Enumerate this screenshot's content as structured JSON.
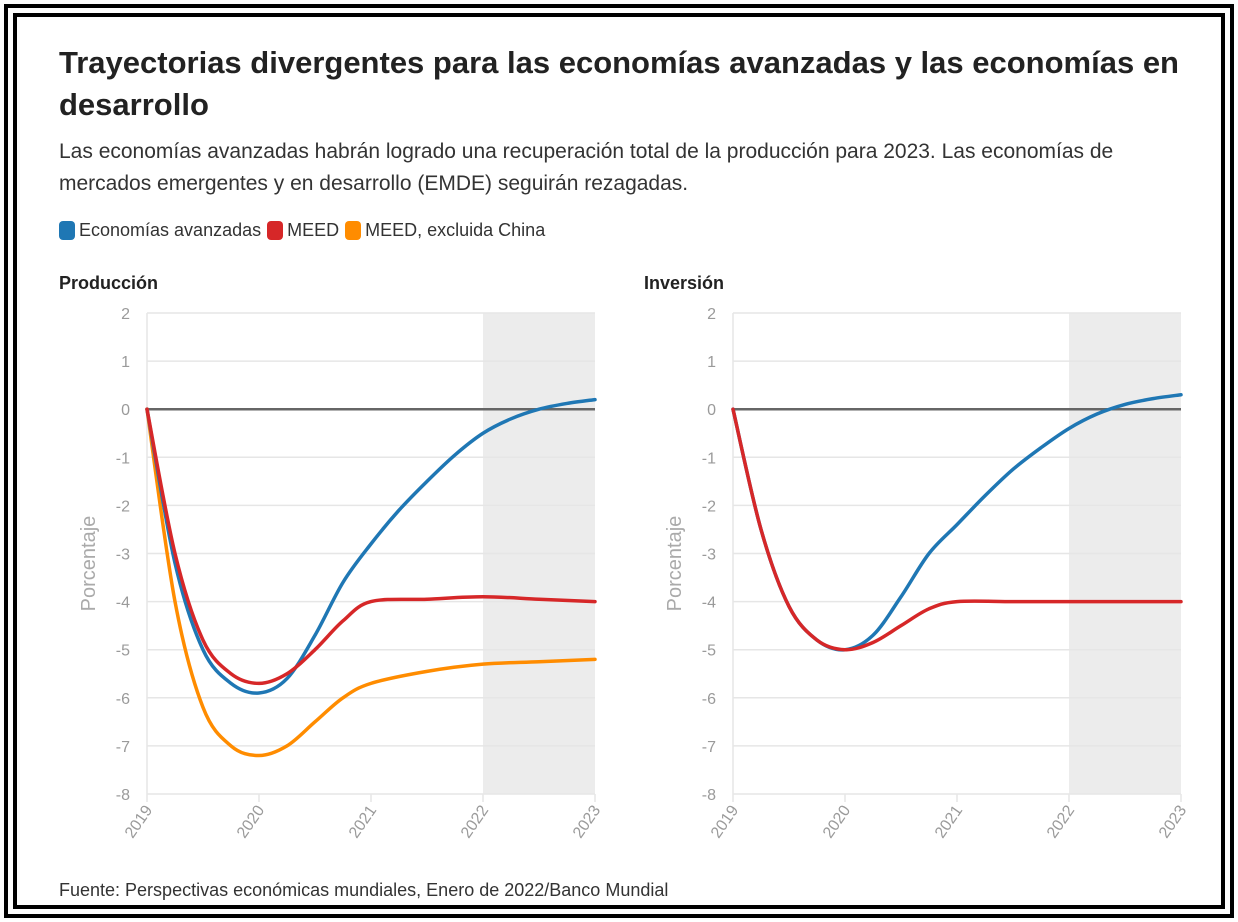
{
  "title": "Trayectorias divergentes para las economías avanzadas y las economías en desarrollo",
  "subtitle": "Las economías avanzadas habrán logrado una recuperación total de la producción para 2023. Las economías de mercados emergentes y en desarrollo (EMDE) seguirán rezagadas.",
  "legend": [
    {
      "label": "Economías avanzadas",
      "color": "#1f77b4"
    },
    {
      "label": "MEED",
      "color": "#d62728"
    },
    {
      "label": "MEED, excluida China",
      "color": "#ff8c00"
    }
  ],
  "source": "Fuente: Perspectivas económicas mundiales, Enero de 2022/Banco Mundial",
  "colors": {
    "grid": "#e6e6e6",
    "zero_line": "#666666",
    "shade": "#ececec",
    "tick": "#9a9a9a"
  },
  "chart_data": [
    {
      "type": "line",
      "title": "Producción",
      "ylabel": "Porcentaje",
      "xlabel": "",
      "ylim": [
        -8,
        2
      ],
      "xlim": [
        2019,
        2023
      ],
      "yticks": [
        "2",
        "1",
        "0",
        "-1",
        "-2",
        "-3",
        "-4",
        "-5",
        "-6",
        "-7",
        "-8"
      ],
      "xticks": [
        "2019",
        "2020",
        "2021",
        "2022",
        "2023"
      ],
      "shaded_range": [
        2022,
        2023
      ],
      "series": [
        {
          "name": "Economías avanzadas",
          "color": "#1f77b4",
          "x": [
            2019,
            2019.25,
            2019.5,
            2019.75,
            2020,
            2020.25,
            2020.5,
            2020.75,
            2021,
            2021.25,
            2021.5,
            2021.75,
            2022,
            2022.25,
            2022.5,
            2022.75,
            2023
          ],
          "y": [
            0,
            -3.2,
            -5.0,
            -5.7,
            -5.9,
            -5.6,
            -4.7,
            -3.6,
            -2.8,
            -2.1,
            -1.5,
            -0.95,
            -0.5,
            -0.2,
            0.0,
            0.12,
            0.2
          ]
        },
        {
          "name": "MEED",
          "color": "#d62728",
          "x": [
            2019,
            2019.25,
            2019.5,
            2019.75,
            2020,
            2020.25,
            2020.5,
            2020.75,
            2021,
            2021.5,
            2022,
            2022.5,
            2023
          ],
          "y": [
            0,
            -3.0,
            -4.8,
            -5.5,
            -5.7,
            -5.5,
            -5.0,
            -4.4,
            -4.0,
            -3.95,
            -3.9,
            -3.95,
            -4.0
          ]
        },
        {
          "name": "MEED, excluida China",
          "color": "#ff8c00",
          "x": [
            2019,
            2019.25,
            2019.5,
            2019.75,
            2020,
            2020.25,
            2020.5,
            2020.75,
            2021,
            2021.5,
            2022,
            2022.5,
            2023
          ],
          "y": [
            0,
            -4.0,
            -6.2,
            -7.0,
            -7.2,
            -7.0,
            -6.5,
            -6.0,
            -5.7,
            -5.45,
            -5.3,
            -5.25,
            -5.2
          ]
        }
      ]
    },
    {
      "type": "line",
      "title": "Inversión",
      "ylabel": "Porcentaje",
      "xlabel": "",
      "ylim": [
        -8,
        2
      ],
      "xlim": [
        2019,
        2023
      ],
      "yticks": [
        "2",
        "1",
        "0",
        "-1",
        "-2",
        "-3",
        "-4",
        "-5",
        "-6",
        "-7",
        "-8"
      ],
      "xticks": [
        "2019",
        "2020",
        "2021",
        "2022",
        "2023"
      ],
      "shaded_range": [
        2022,
        2023
      ],
      "series": [
        {
          "name": "Economías avanzadas",
          "color": "#1f77b4",
          "x": [
            2019,
            2019.25,
            2019.5,
            2019.75,
            2020,
            2020.25,
            2020.5,
            2020.75,
            2021,
            2021.25,
            2021.5,
            2021.75,
            2022,
            2022.25,
            2022.5,
            2022.75,
            2023
          ],
          "y": [
            0,
            -2.5,
            -4.1,
            -4.8,
            -5.0,
            -4.7,
            -3.9,
            -3.0,
            -2.4,
            -1.8,
            -1.25,
            -0.8,
            -0.4,
            -0.1,
            0.1,
            0.22,
            0.3
          ]
        },
        {
          "name": "MEED",
          "color": "#d62728",
          "x": [
            2019,
            2019.25,
            2019.5,
            2019.75,
            2020,
            2020.25,
            2020.5,
            2020.75,
            2021,
            2021.5,
            2022,
            2022.5,
            2023
          ],
          "y": [
            0,
            -2.5,
            -4.1,
            -4.8,
            -5.0,
            -4.85,
            -4.5,
            -4.15,
            -4.0,
            -4.0,
            -4.0,
            -4.0,
            -4.0
          ]
        }
      ]
    }
  ]
}
